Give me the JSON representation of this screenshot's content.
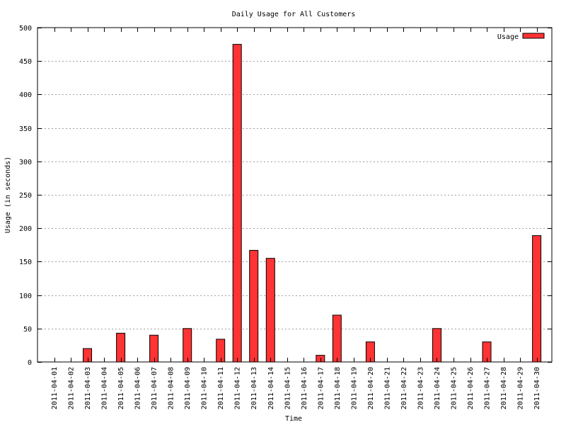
{
  "chart_data": {
    "type": "bar",
    "title": "Daily Usage for All Customers",
    "xlabel": "Time",
    "ylabel": "Usage (in seconds)",
    "ylim": [
      0,
      500
    ],
    "yticks": [
      0,
      50,
      100,
      150,
      200,
      250,
      300,
      350,
      400,
      450,
      500
    ],
    "grid": true,
    "legend_position": "top-right",
    "bar_color": "#ff3333",
    "categories": [
      "2011-04-01",
      "2011-04-02",
      "2011-04-03",
      "2011-04-04",
      "2011-04-05",
      "2011-04-06",
      "2011-04-07",
      "2011-04-08",
      "2011-04-09",
      "2011-04-10",
      "2011-04-11",
      "2011-04-12",
      "2011-04-13",
      "2011-04-14",
      "2011-04-15",
      "2011-04-16",
      "2011-04-17",
      "2011-04-18",
      "2011-04-19",
      "2011-04-20",
      "2011-04-21",
      "2011-04-22",
      "2011-04-23",
      "2011-04-24",
      "2011-04-25",
      "2011-04-26",
      "2011-04-27",
      "2011-04-28",
      "2011-04-29",
      "2011-04-30"
    ],
    "series": [
      {
        "name": "Usage",
        "values": [
          0,
          0,
          20,
          0,
          43,
          0,
          40,
          0,
          50,
          0,
          34,
          475,
          167,
          155,
          0,
          0,
          10,
          70,
          0,
          30,
          0,
          0,
          0,
          50,
          0,
          0,
          30,
          0,
          0,
          189
        ]
      }
    ]
  }
}
